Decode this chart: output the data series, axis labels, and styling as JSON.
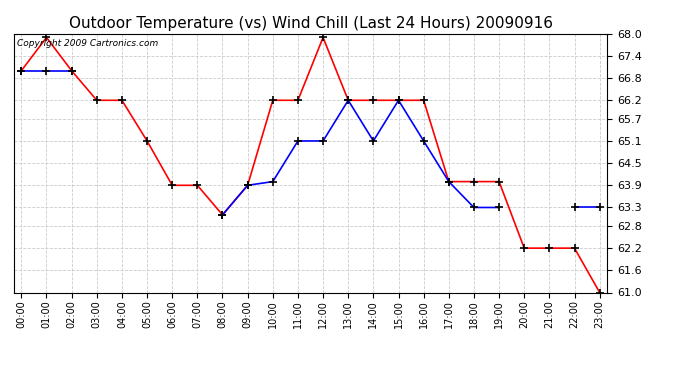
{
  "title": "Outdoor Temperature (vs) Wind Chill (Last 24 Hours) 20090916",
  "copyright_text": "Copyright 2009 Cartronics.com",
  "hours": [
    "00:00",
    "01:00",
    "02:00",
    "03:00",
    "04:00",
    "05:00",
    "06:00",
    "07:00",
    "08:00",
    "09:00",
    "10:00",
    "11:00",
    "12:00",
    "13:00",
    "14:00",
    "15:00",
    "16:00",
    "17:00",
    "18:00",
    "19:00",
    "20:00",
    "21:00",
    "22:00",
    "23:00"
  ],
  "temp": [
    67.0,
    67.9,
    67.0,
    66.2,
    66.2,
    65.1,
    63.9,
    63.9,
    63.1,
    63.9,
    66.2,
    66.2,
    67.9,
    66.2,
    66.2,
    66.2,
    66.2,
    64.0,
    64.0,
    64.0,
    62.2,
    62.2,
    62.2,
    61.0
  ],
  "wind_chill": [
    67.0,
    67.0,
    67.0,
    null,
    null,
    null,
    null,
    null,
    63.1,
    63.9,
    64.0,
    65.1,
    65.1,
    66.2,
    65.1,
    66.2,
    65.1,
    64.0,
    63.3,
    63.3,
    null,
    null,
    63.3,
    63.3
  ],
  "temp_color": "#ff0000",
  "wind_chill_color": "#0000ff",
  "bg_color": "#ffffff",
  "grid_color": "#cccccc",
  "ymin": 61.0,
  "ymax": 68.0,
  "yticks": [
    61.0,
    61.6,
    62.2,
    62.8,
    63.3,
    63.9,
    64.5,
    65.1,
    65.7,
    66.2,
    66.8,
    67.4,
    68.0
  ],
  "title_fontsize": 11,
  "tick_fontsize": 8,
  "xlabel_fontsize": 7
}
